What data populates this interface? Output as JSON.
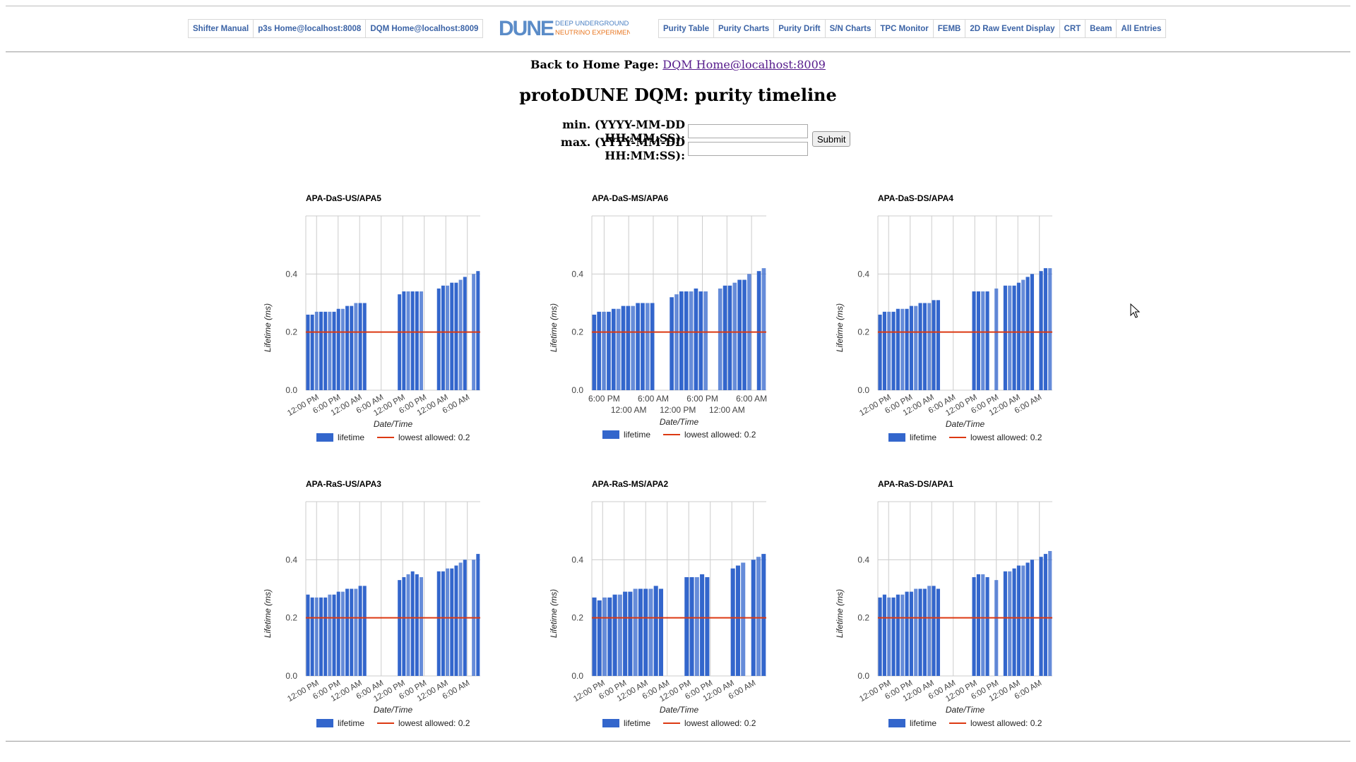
{
  "nav": {
    "left": [
      "Shifter Manual",
      "p3s Home@localhost:8008",
      "DQM Home@localhost:8009"
    ],
    "right": [
      "Purity Table",
      "Purity Charts",
      "Purity Drift",
      "S/N Charts",
      "TPC Monitor",
      "FEMB",
      "2D Raw Event Display",
      "CRT",
      "Beam",
      "All Entries"
    ]
  },
  "logo": {
    "mark": "DUNE",
    "line1": "DEEP UNDERGROUND",
    "line2": "NEUTRINO EXPERIMENT"
  },
  "home": {
    "label": "Back to Home Page:",
    "link": "DQM Home@localhost:8009"
  },
  "page_title": "protoDUNE DQM: purity timeline",
  "form": {
    "min_label": "min. (YYYY-MM-DD HH:MM:SS):",
    "max_label": "max. (YYYY-MM-DD HH:MM:SS):",
    "min_value": "",
    "max_value": "",
    "submit_label": "Submit"
  },
  "colors": {
    "bar": "#3366cc",
    "threshold": "#dc3912",
    "nav_text": "#3b63a6",
    "link": "#551a8b"
  },
  "chart_data": [
    {
      "type": "bar",
      "title": "APA-DaS-US/APA5",
      "xlabel": "Date/Time",
      "ylabel": "Lifetime (ms)",
      "ylim": [
        0,
        0.6
      ],
      "yticks": [
        "0.0",
        "0.2",
        "0.4"
      ],
      "xticks": [
        "12:00 PM",
        "6:00 PM",
        "12:00 AM",
        "6:00 AM",
        "12:00 PM",
        "6:00 PM",
        "12:00 AM",
        "6:00 AM"
      ],
      "xtick_style": "rotated",
      "threshold": 0.2,
      "legend": [
        "lifetime",
        "lowest allowed: 0.2"
      ],
      "values": [
        0.26,
        0.26,
        0.27,
        0.27,
        0.27,
        0.27,
        0.27,
        0.28,
        0.28,
        0.29,
        0.29,
        0.3,
        0.3,
        0.3,
        0,
        0,
        0,
        0,
        0,
        0,
        0,
        0.33,
        0.34,
        0.34,
        0.34,
        0.34,
        0.34,
        0,
        0,
        0,
        0.35,
        0.36,
        0.36,
        0.37,
        0.37,
        0.38,
        0.39,
        0,
        0.4,
        0.41
      ]
    },
    {
      "type": "bar",
      "title": "APA-DaS-MS/APA6",
      "xlabel": "Date/Time",
      "ylabel": "Lifetime (ms)",
      "ylim": [
        0,
        0.6
      ],
      "yticks": [
        "0.0",
        "0.2",
        "0.4"
      ],
      "xticks": [
        "6:00 PM",
        "12:00 AM",
        "6:00 AM",
        "12:00 PM",
        "6:00 PM",
        "12:00 AM",
        "6:00 AM"
      ],
      "xtick_style": "staggered",
      "threshold": 0.2,
      "legend": [
        "lifetime",
        "lowest allowed: 0.2"
      ],
      "values": [
        0.26,
        0.27,
        0.27,
        0.27,
        0.28,
        0.28,
        0.29,
        0.29,
        0.29,
        0.3,
        0.3,
        0.3,
        0.3,
        0,
        0,
        0,
        0.32,
        0.33,
        0.34,
        0.34,
        0.34,
        0.35,
        0.34,
        0.34,
        0,
        0,
        0.35,
        0.36,
        0.36,
        0.37,
        0.38,
        0.38,
        0.4,
        0,
        0.41,
        0.42
      ]
    },
    {
      "type": "bar",
      "title": "APA-DaS-DS/APA4",
      "xlabel": "Date/Time",
      "ylabel": "Lifetime (ms)",
      "ylim": [
        0,
        0.6
      ],
      "yticks": [
        "0.0",
        "0.2",
        "0.4"
      ],
      "xticks": [
        "12:00 PM",
        "6:00 PM",
        "12:00 AM",
        "6:00 AM",
        "12:00 PM",
        "6:00 PM",
        "12:00 AM",
        "6:00 AM"
      ],
      "xtick_style": "rotated",
      "threshold": 0.2,
      "legend": [
        "lifetime",
        "lowest allowed: 0.2"
      ],
      "values": [
        0.26,
        0.27,
        0.27,
        0.27,
        0.28,
        0.28,
        0.28,
        0.29,
        0.29,
        0.3,
        0.3,
        0.3,
        0.31,
        0.31,
        0,
        0,
        0,
        0,
        0,
        0,
        0,
        0.34,
        0.34,
        0.34,
        0.34,
        0,
        0.35,
        0,
        0.36,
        0.36,
        0.36,
        0.37,
        0.38,
        0.39,
        0.4,
        0,
        0.41,
        0.42,
        0.42
      ]
    },
    {
      "type": "bar",
      "title": "APA-RaS-US/APA3",
      "xlabel": "Date/Time",
      "ylabel": "Lifetime (ms)",
      "ylim": [
        0,
        0.6
      ],
      "yticks": [
        "0.0",
        "0.2",
        "0.4"
      ],
      "xticks": [
        "12:00 PM",
        "6:00 PM",
        "12:00 AM",
        "6:00 AM",
        "12:00 PM",
        "6:00 PM",
        "12:00 AM",
        "6:00 AM"
      ],
      "xtick_style": "rotated",
      "threshold": 0.2,
      "legend": [
        "lifetime",
        "lowest allowed: 0.2"
      ],
      "values": [
        0.28,
        0.27,
        0.27,
        0.27,
        0.27,
        0.28,
        0.28,
        0.29,
        0.29,
        0.3,
        0.3,
        0.3,
        0.31,
        0.31,
        0,
        0,
        0,
        0,
        0,
        0,
        0,
        0.33,
        0.34,
        0.35,
        0.36,
        0.35,
        0.34,
        0,
        0,
        0,
        0.36,
        0.36,
        0.37,
        0.37,
        0.38,
        0.39,
        0.4,
        0,
        0.4,
        0.42
      ]
    },
    {
      "type": "bar",
      "title": "APA-RaS-MS/APA2",
      "xlabel": "Date/Time",
      "ylabel": "Lifetime (ms)",
      "ylim": [
        0,
        0.6
      ],
      "yticks": [
        "0.0",
        "0.2",
        "0.4"
      ],
      "xticks": [
        "12:00 PM",
        "6:00 PM",
        "12:00 AM",
        "6:00 AM",
        "12:00 PM",
        "6:00 PM",
        "12:00 AM",
        "6:00 AM"
      ],
      "xtick_style": "rotated",
      "threshold": 0.2,
      "legend": [
        "lifetime",
        "lowest allowed: 0.2"
      ],
      "values": [
        0.27,
        0.26,
        0.27,
        0.27,
        0.28,
        0.28,
        0.29,
        0.29,
        0.3,
        0.3,
        0.3,
        0.3,
        0.31,
        0.3,
        0,
        0,
        0,
        0,
        0.34,
        0.34,
        0.34,
        0.35,
        0.34,
        0,
        0,
        0,
        0,
        0.37,
        0.38,
        0.39,
        0,
        0.4,
        0.41,
        0.42
      ]
    },
    {
      "type": "bar",
      "title": "APA-RaS-DS/APA1",
      "xlabel": "Date/Time",
      "ylabel": "Lifetime (ms)",
      "ylim": [
        0,
        0.6
      ],
      "yticks": [
        "0.0",
        "0.2",
        "0.4"
      ],
      "xticks": [
        "12:00 PM",
        "6:00 PM",
        "12:00 AM",
        "6:00 AM",
        "12:00 PM",
        "6:00 PM",
        "12:00 AM",
        "6:00 AM"
      ],
      "xtick_style": "rotated",
      "threshold": 0.2,
      "legend": [
        "lifetime",
        "lowest allowed: 0.2"
      ],
      "values": [
        0.27,
        0.28,
        0.27,
        0.27,
        0.28,
        0.28,
        0.29,
        0.29,
        0.3,
        0.3,
        0.3,
        0.31,
        0.31,
        0.3,
        0,
        0,
        0,
        0,
        0,
        0,
        0,
        0.34,
        0.35,
        0.35,
        0.34,
        0,
        0.33,
        0,
        0.36,
        0.36,
        0.37,
        0.38,
        0.38,
        0.39,
        0.4,
        0,
        0.41,
        0.42,
        0.43
      ]
    }
  ]
}
